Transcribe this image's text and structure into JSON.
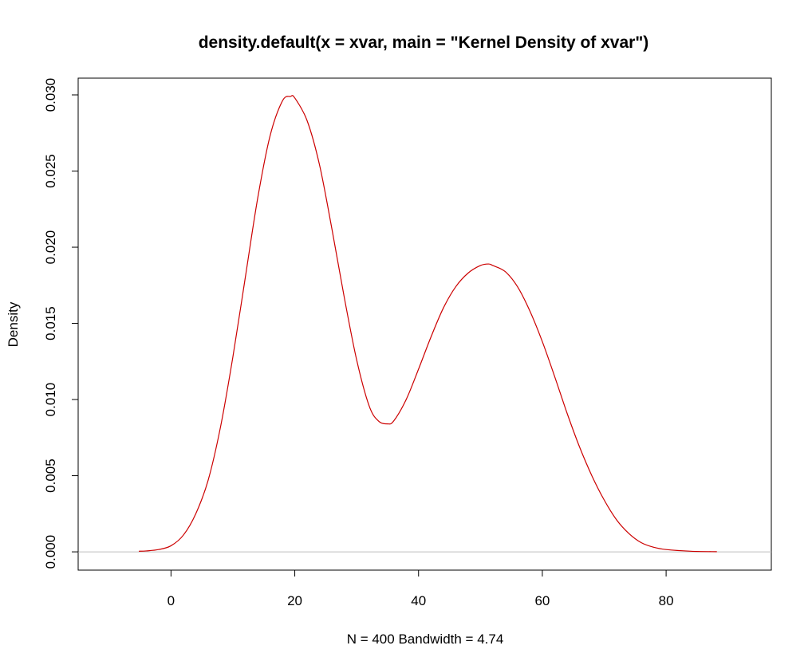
{
  "chart_data": {
    "type": "line",
    "title": "density.default(x = xvar, main = \"Kernel Density of xvar\")",
    "xlabel": "N = 400   Bandwidth = 4.74",
    "ylabel": "Density",
    "xlim": [
      -15.0,
      97.0
    ],
    "ylim": [
      -0.0012,
      0.0311
    ],
    "x_ticks": [
      0,
      20,
      40,
      60,
      80
    ],
    "x_tick_labels": [
      "0",
      "20",
      "40",
      "60",
      "80"
    ],
    "y_ticks": [
      0.0,
      0.005,
      0.01,
      0.015,
      0.02,
      0.025,
      0.03
    ],
    "y_tick_labels": [
      "0.000",
      "0.005",
      "0.010",
      "0.015",
      "0.020",
      "0.025",
      "0.030"
    ],
    "grid": false,
    "baseline": {
      "y": 0,
      "color": "#bebebe"
    },
    "series": [
      {
        "color": "#cc0000",
        "points": [
          [
            -5.2,
            4e-05
          ],
          [
            -4,
            6e-05
          ],
          [
            -2,
            0.00015
          ],
          [
            0,
            0.0004
          ],
          [
            2,
            0.0011
          ],
          [
            4,
            0.0025
          ],
          [
            6,
            0.0047
          ],
          [
            8,
            0.0082
          ],
          [
            10,
            0.0128
          ],
          [
            12,
            0.018
          ],
          [
            14,
            0.0232
          ],
          [
            16,
            0.0273
          ],
          [
            18,
            0.0296
          ],
          [
            19.3,
            0.0299
          ],
          [
            20,
            0.0298
          ],
          [
            22,
            0.0283
          ],
          [
            24,
            0.0254
          ],
          [
            26,
            0.0212
          ],
          [
            28,
            0.0167
          ],
          [
            30,
            0.0126
          ],
          [
            32,
            0.0096
          ],
          [
            33.5,
            0.0086
          ],
          [
            35,
            0.0084
          ],
          [
            36,
            0.0086
          ],
          [
            38,
            0.01
          ],
          [
            40,
            0.012
          ],
          [
            42,
            0.0141
          ],
          [
            44,
            0.016
          ],
          [
            46,
            0.0174
          ],
          [
            48,
            0.0183
          ],
          [
            50,
            0.0188
          ],
          [
            51.3,
            0.0189
          ],
          [
            52,
            0.0188
          ],
          [
            54,
            0.0184
          ],
          [
            56,
            0.0174
          ],
          [
            58,
            0.0158
          ],
          [
            60,
            0.0138
          ],
          [
            62,
            0.0115
          ],
          [
            64,
            0.0091
          ],
          [
            66,
            0.0069
          ],
          [
            68,
            0.005
          ],
          [
            70,
            0.0034
          ],
          [
            72,
            0.0021
          ],
          [
            74,
            0.0012
          ],
          [
            76,
            0.0006
          ],
          [
            78,
            0.0003
          ],
          [
            80,
            0.00015
          ],
          [
            84,
            4e-05
          ],
          [
            88.2,
            1e-05
          ]
        ]
      }
    ]
  }
}
